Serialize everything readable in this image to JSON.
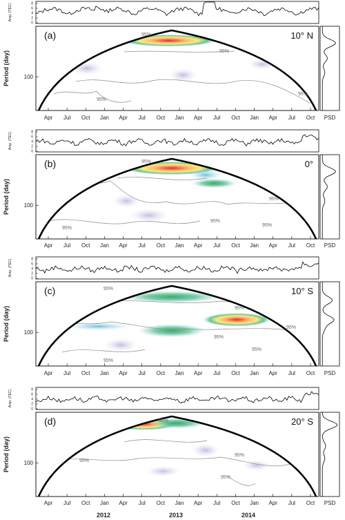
{
  "chart_data": {
    "type": "heatmap",
    "x_months": [
      "Apr",
      "Jul",
      "Oct",
      "Jan",
      "Apr",
      "Jul",
      "Oct",
      "Jan",
      "Apr",
      "Jul",
      "Oct",
      "Jan",
      "Apr",
      "Jul",
      "Oct"
    ],
    "x_years": [
      "2012",
      "2013",
      "2014"
    ],
    "ylabel": "Period (day)",
    "y_tick": "100",
    "amp_label": "Amp. (TEC)",
    "amp_ticks": [
      "8",
      "6",
      "4",
      "2",
      "0"
    ],
    "psd_label": "PSD",
    "contour_label": "95%",
    "panels": [
      {
        "id": "(a)",
        "lat": "10° N"
      },
      {
        "id": "(b)",
        "lat": "0°"
      },
      {
        "id": "(c)",
        "lat": "10° S"
      },
      {
        "id": "(d)",
        "lat": "20° S"
      }
    ]
  }
}
